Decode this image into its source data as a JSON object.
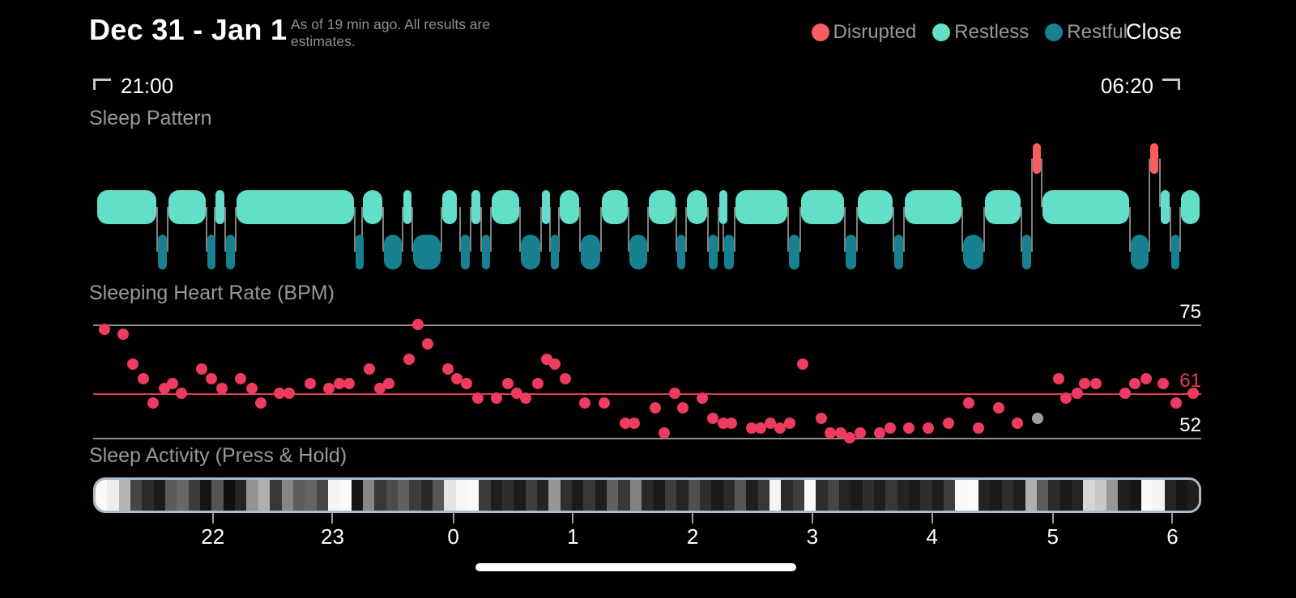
{
  "header": {
    "title": "Dec 31 - Jan 1",
    "subtitle": "As of 19 min ago. All results are estimates.",
    "close_label": "Close",
    "legend": [
      {
        "label": "Disrupted",
        "color": "#fa5d5d"
      },
      {
        "label": "Restless",
        "color": "#63dfc9"
      },
      {
        "label": "Restful",
        "color": "#17818f"
      }
    ]
  },
  "time_window": {
    "start": "21:00",
    "end": "06:20"
  },
  "colors": {
    "disrupted": "#fa5d5d",
    "restless": "#63dfc9",
    "restful": "#17818f",
    "hr_point": "#ee3b60",
    "hr_midline": "#e43a55",
    "gridline": "#8e8e93",
    "gray_point": "#9e9e9e",
    "strip_border": "#a9bbc9",
    "text_secondary": "#98989d"
  },
  "chart_data": [
    {
      "type": "timeline",
      "title": "Sleep Pattern",
      "x_range": [
        "21:00",
        "06:20"
      ],
      "states": [
        "disrupted",
        "restless",
        "restful"
      ],
      "segments": [
        {
          "state": "restless",
          "from": 0.003,
          "to": 0.058
        },
        {
          "state": "restful",
          "from": 0.058,
          "to": 0.067
        },
        {
          "state": "restless",
          "from": 0.067,
          "to": 0.102
        },
        {
          "state": "restful",
          "from": 0.102,
          "to": 0.11
        },
        {
          "state": "restless",
          "from": 0.11,
          "to": 0.119
        },
        {
          "state": "restful",
          "from": 0.119,
          "to": 0.129
        },
        {
          "state": "restless",
          "from": 0.129,
          "to": 0.236
        },
        {
          "state": "restful",
          "from": 0.236,
          "to": 0.243
        },
        {
          "state": "restless",
          "from": 0.243,
          "to": 0.262
        },
        {
          "state": "restful",
          "from": 0.262,
          "to": 0.279
        },
        {
          "state": "restless",
          "from": 0.279,
          "to": 0.288
        },
        {
          "state": "restful",
          "from": 0.288,
          "to": 0.314
        },
        {
          "state": "restless",
          "from": 0.314,
          "to": 0.329
        },
        {
          "state": "restful",
          "from": 0.331,
          "to": 0.341
        },
        {
          "state": "restless",
          "from": 0.341,
          "to": 0.35
        },
        {
          "state": "restful",
          "from": 0.35,
          "to": 0.358
        },
        {
          "state": "restless",
          "from": 0.359,
          "to": 0.385
        },
        {
          "state": "restful",
          "from": 0.385,
          "to": 0.404
        },
        {
          "state": "restless",
          "from": 0.404,
          "to": 0.412
        },
        {
          "state": "restful",
          "from": 0.412,
          "to": 0.42
        },
        {
          "state": "restless",
          "from": 0.42,
          "to": 0.439
        },
        {
          "state": "restful",
          "from": 0.439,
          "to": 0.458
        },
        {
          "state": "restless",
          "from": 0.458,
          "to": 0.483
        },
        {
          "state": "restful",
          "from": 0.483,
          "to": 0.501
        },
        {
          "state": "restless",
          "from": 0.501,
          "to": 0.526
        },
        {
          "state": "restful",
          "from": 0.526,
          "to": 0.535
        },
        {
          "state": "restless",
          "from": 0.535,
          "to": 0.555
        },
        {
          "state": "restful",
          "from": 0.555,
          "to": 0.564
        },
        {
          "state": "restless",
          "from": 0.564,
          "to": 0.569
        },
        {
          "state": "restful",
          "from": 0.569,
          "to": 0.579
        },
        {
          "state": "restless",
          "from": 0.579,
          "to": 0.627
        },
        {
          "state": "restful",
          "from": 0.627,
          "to": 0.638
        },
        {
          "state": "restless",
          "from": 0.638,
          "to": 0.678
        },
        {
          "state": "restful",
          "from": 0.678,
          "to": 0.689
        },
        {
          "state": "restless",
          "from": 0.689,
          "to": 0.722
        },
        {
          "state": "restful",
          "from": 0.722,
          "to": 0.732
        },
        {
          "state": "restless",
          "from": 0.732,
          "to": 0.784
        },
        {
          "state": "restful",
          "from": 0.784,
          "to": 0.804
        },
        {
          "state": "restless",
          "from": 0.804,
          "to": 0.838
        },
        {
          "state": "restful",
          "from": 0.838,
          "to": 0.847
        },
        {
          "state": "disrupted",
          "from": 0.847,
          "to": 0.856
        },
        {
          "state": "restless",
          "from": 0.856,
          "to": 0.936
        },
        {
          "state": "restful",
          "from": 0.936,
          "to": 0.953
        },
        {
          "state": "disrupted",
          "from": 0.953,
          "to": 0.962
        },
        {
          "state": "restless",
          "from": 0.963,
          "to": 0.972
        },
        {
          "state": "restful",
          "from": 0.972,
          "to": 0.981
        },
        {
          "state": "restless",
          "from": 0.981,
          "to": 0.999
        }
      ]
    },
    {
      "type": "scatter",
      "title": "Sleeping Heart Rate (BPM)",
      "ylabel": "BPM",
      "ylim": [
        52,
        75
      ],
      "gridlines": [
        75,
        61,
        52
      ],
      "highlight_value": 61,
      "points": [
        [
          0.01,
          74
        ],
        [
          0.027,
          73
        ],
        [
          0.036,
          67
        ],
        [
          0.045,
          64
        ],
        [
          0.054,
          59
        ],
        [
          0.064,
          62
        ],
        [
          0.072,
          63
        ],
        [
          0.08,
          61
        ],
        [
          0.098,
          66
        ],
        [
          0.107,
          64
        ],
        [
          0.116,
          62
        ],
        [
          0.133,
          64
        ],
        [
          0.143,
          62
        ],
        [
          0.151,
          59
        ],
        [
          0.168,
          61
        ],
        [
          0.177,
          61
        ],
        [
          0.196,
          63
        ],
        [
          0.213,
          62
        ],
        [
          0.222,
          63
        ],
        [
          0.231,
          63
        ],
        [
          0.249,
          66
        ],
        [
          0.259,
          62
        ],
        [
          0.267,
          63
        ],
        [
          0.285,
          68
        ],
        [
          0.293,
          75
        ],
        [
          0.302,
          71
        ],
        [
          0.32,
          66
        ],
        [
          0.328,
          64
        ],
        [
          0.337,
          63
        ],
        [
          0.347,
          60
        ],
        [
          0.364,
          60
        ],
        [
          0.374,
          63
        ],
        [
          0.382,
          61
        ],
        [
          0.39,
          60
        ],
        [
          0.401,
          63
        ],
        [
          0.409,
          68
        ],
        [
          0.417,
          67
        ],
        [
          0.426,
          64
        ],
        [
          0.444,
          59
        ],
        [
          0.461,
          59
        ],
        [
          0.48,
          55
        ],
        [
          0.488,
          55
        ],
        [
          0.507,
          58
        ],
        [
          0.515,
          53
        ],
        [
          0.525,
          61
        ],
        [
          0.532,
          58
        ],
        [
          0.55,
          60
        ],
        [
          0.559,
          56
        ],
        [
          0.569,
          55
        ],
        [
          0.576,
          55
        ],
        [
          0.594,
          54
        ],
        [
          0.602,
          54
        ],
        [
          0.611,
          55
        ],
        [
          0.62,
          54
        ],
        [
          0.629,
          55
        ],
        [
          0.64,
          67
        ],
        [
          0.657,
          56
        ],
        [
          0.665,
          53
        ],
        [
          0.675,
          53
        ],
        [
          0.683,
          52
        ],
        [
          0.692,
          53
        ],
        [
          0.71,
          53
        ],
        [
          0.719,
          54
        ],
        [
          0.736,
          54
        ],
        [
          0.754,
          54
        ],
        [
          0.772,
          55
        ],
        [
          0.79,
          59
        ],
        [
          0.799,
          54
        ],
        [
          0.817,
          58
        ],
        [
          0.834,
          55
        ],
        [
          0.871,
          64
        ],
        [
          0.878,
          60
        ],
        [
          0.888,
          61
        ],
        [
          0.895,
          63
        ],
        [
          0.905,
          63
        ],
        [
          0.931,
          61
        ],
        [
          0.94,
          63
        ],
        [
          0.95,
          64
        ],
        [
          0.966,
          63
        ],
        [
          0.977,
          59
        ],
        [
          0.993,
          61
        ]
      ],
      "gray_point": [
        0.852,
        56
      ]
    },
    {
      "type": "heatmap",
      "title": "Sleep Activity (Press & Hold)",
      "x_tick_labels": [
        "22",
        "23",
        "0",
        "1",
        "2",
        "3",
        "4",
        "5",
        "6"
      ],
      "x_tick_pos": [
        0.108,
        0.216,
        0.325,
        0.433,
        0.541,
        0.649,
        0.757,
        0.866,
        0.974
      ],
      "bar_gray_levels": [
        250,
        238,
        182,
        70,
        42,
        26,
        90,
        104,
        60,
        22,
        84,
        16,
        36,
        148,
        176,
        56,
        134,
        92,
        100,
        70,
        244,
        250,
        22,
        134,
        56,
        76,
        96,
        60,
        40,
        86,
        228,
        246,
        250,
        60,
        30,
        46,
        26,
        62,
        36,
        150,
        46,
        26,
        56,
        30,
        96,
        56,
        130,
        42,
        26,
        62,
        36,
        80,
        46,
        26,
        42,
        86,
        30,
        56,
        244,
        42,
        62,
        250,
        46,
        70,
        36,
        26,
        46,
        30,
        56,
        36,
        26,
        46,
        30,
        62,
        248,
        252,
        36,
        26,
        46,
        30,
        176,
        92,
        42,
        26,
        36,
        214,
        200,
        150,
        30,
        22,
        250,
        244,
        36,
        22,
        30
      ]
    }
  ]
}
